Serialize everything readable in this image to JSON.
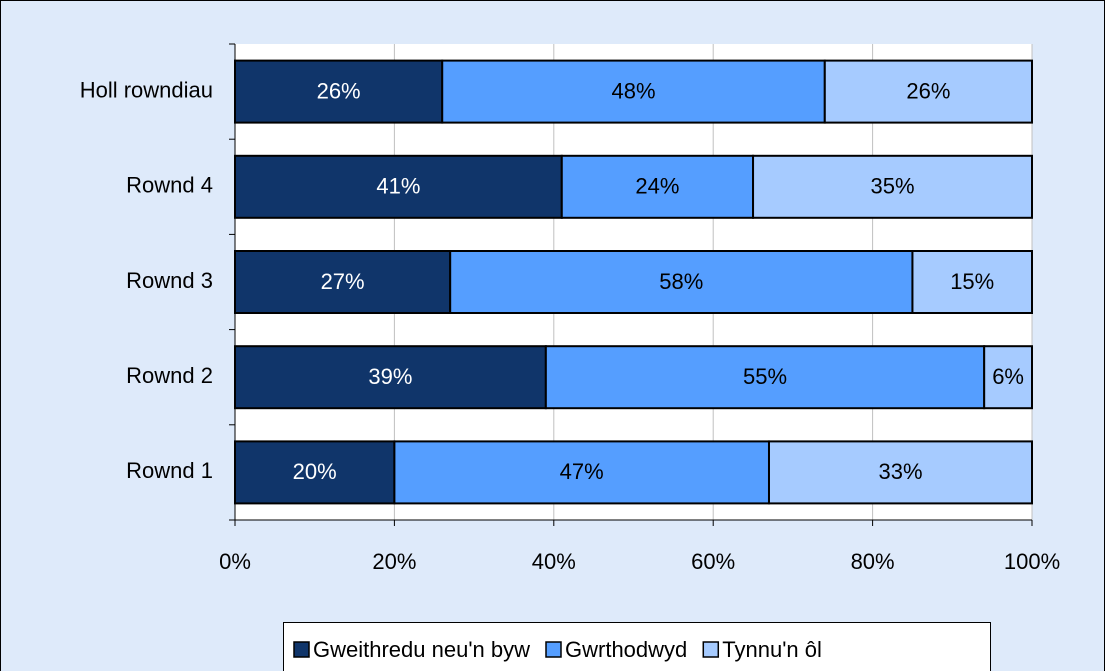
{
  "chart_data": {
    "type": "stacked_barh",
    "categories": [
      "Rownd 1",
      "Rownd 2",
      "Rownd 3",
      "Rownd 4",
      "Holl rowndiau"
    ],
    "series": [
      {
        "name": "Gweithredu neu'n byw",
        "color": "#10356a",
        "values": [
          20,
          39,
          27,
          41,
          26
        ],
        "value_labels": [
          "20%",
          "39%",
          "27%",
          "41%",
          "26%"
        ]
      },
      {
        "name": "Gwrthodwyd",
        "color": "#559eff",
        "values": [
          47,
          55,
          58,
          24,
          48
        ],
        "value_labels": [
          "47%",
          "55%",
          "58%",
          "24%",
          "48%"
        ]
      },
      {
        "name": "Tynnu'n ôl",
        "color": "#a6cbff",
        "values": [
          33,
          6,
          15,
          35,
          26
        ],
        "value_labels": [
          "33%",
          "6%",
          "15%",
          "35%",
          "26%"
        ]
      }
    ],
    "xlim": [
      0,
      100
    ],
    "xticks": [
      {
        "value": 0,
        "label": "0%"
      },
      {
        "value": 20,
        "label": "20%"
      },
      {
        "value": 40,
        "label": "40%"
      },
      {
        "value": 60,
        "label": "60%"
      },
      {
        "value": 80,
        "label": "80%"
      },
      {
        "value": 100,
        "label": "100%"
      }
    ],
    "grid": true,
    "legend": "bottom"
  }
}
